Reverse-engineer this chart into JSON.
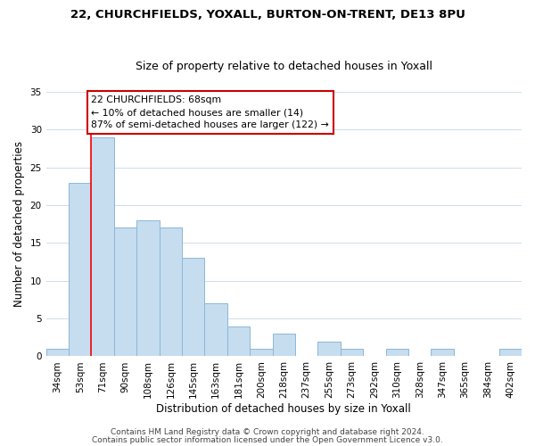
{
  "title1": "22, CHURCHFIELDS, YOXALL, BURTON-ON-TRENT, DE13 8PU",
  "title2": "Size of property relative to detached houses in Yoxall",
  "xlabel": "Distribution of detached houses by size in Yoxall",
  "ylabel": "Number of detached properties",
  "bar_labels": [
    "34sqm",
    "53sqm",
    "71sqm",
    "90sqm",
    "108sqm",
    "126sqm",
    "145sqm",
    "163sqm",
    "181sqm",
    "200sqm",
    "218sqm",
    "237sqm",
    "255sqm",
    "273sqm",
    "292sqm",
    "310sqm",
    "328sqm",
    "347sqm",
    "365sqm",
    "384sqm",
    "402sqm"
  ],
  "bar_values": [
    1,
    23,
    29,
    17,
    18,
    17,
    13,
    7,
    4,
    1,
    3,
    0,
    2,
    1,
    0,
    1,
    0,
    1,
    0,
    0,
    1
  ],
  "bar_color": "#c5ddef",
  "bar_edge_color": "#8ab8d8",
  "ylim": [
    0,
    35
  ],
  "yticks": [
    0,
    5,
    10,
    15,
    20,
    25,
    30,
    35
  ],
  "red_line_index": 2,
  "annotation_line1": "22 CHURCHFIELDS: 68sqm",
  "annotation_line2": "← 10% of detached houses are smaller (14)",
  "annotation_line3": "87% of semi-detached houses are larger (122) →",
  "annotation_box_color": "#ffffff",
  "annotation_box_edge": "#cc0000",
  "footer1": "Contains HM Land Registry data © Crown copyright and database right 2024.",
  "footer2": "Contains public sector information licensed under the Open Government Licence v3.0.",
  "background_color": "#ffffff",
  "grid_color": "#d0dce8",
  "title1_fontsize": 9.5,
  "title2_fontsize": 9,
  "axis_label_fontsize": 8.5,
  "tick_fontsize": 7.5,
  "footer_fontsize": 6.5
}
